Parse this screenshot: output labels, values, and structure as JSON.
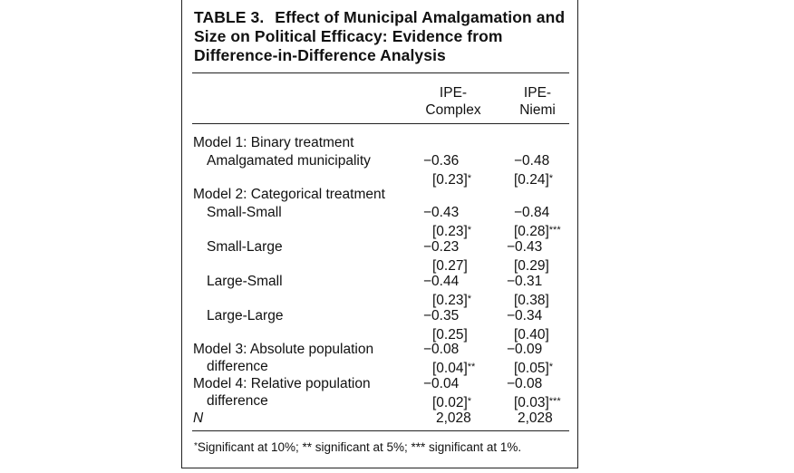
{
  "table": {
    "title_label": "TABLE 3.",
    "title_text": "Effect of Municipal Amalgamation and Size on Political Efficacy: Evidence from Difference-in-Difference Analysis",
    "columns": [
      {
        "line1": "IPE-",
        "line2": "Complex"
      },
      {
        "line1": "IPE-",
        "line2": "Niemi"
      }
    ],
    "model1": {
      "heading": "Model 1: Binary treatment",
      "rows": [
        {
          "label": "Amalgamated municipality",
          "c1": "−0.36",
          "c1_se": "[0.23]",
          "c1_sig": "*",
          "c2": "−0.48",
          "c2_se": "[0.24]",
          "c2_sig": "*"
        }
      ]
    },
    "model2": {
      "heading": "Model 2: Categorical treatment",
      "rows": [
        {
          "label": "Small-Small",
          "c1": "−0.43",
          "c1_se": "[0.23]",
          "c1_sig": "*",
          "c2": "−0.84",
          "c2_se": "[0.28]",
          "c2_sig": "***"
        },
        {
          "label": "Small-Large",
          "c1": "−0.23",
          "c1_se": "[0.27]",
          "c1_sig": "",
          "c2": "−0.43",
          "c2_se": "[0.29]",
          "c2_sig": ""
        },
        {
          "label": "Large-Small",
          "c1": "−0.44",
          "c1_se": "[0.23]",
          "c1_sig": "*",
          "c2": "−0.31",
          "c2_se": "[0.38]",
          "c2_sig": ""
        },
        {
          "label": "Large-Large",
          "c1": "−0.35",
          "c1_se": "[0.25]",
          "c1_sig": "",
          "c2": "−0.34",
          "c2_se": "[0.40]",
          "c2_sig": ""
        }
      ]
    },
    "model3": {
      "line1": "Model 3: Absolute population",
      "line2": "difference",
      "c1": "−0.08",
      "c1_se": "[0.04]",
      "c1_sig": "**",
      "c2": "−0.09",
      "c2_se": "[0.05]",
      "c2_sig": "*"
    },
    "model4": {
      "line1": "Model 4: Relative population",
      "line2": "difference",
      "c1": "−0.04",
      "c1_se": "[0.02]",
      "c1_sig": "*",
      "c2": "−0.08",
      "c2_se": "[0.03]",
      "c2_sig": "***"
    },
    "n_row": {
      "label": "N",
      "c1": "2,028",
      "c2": "2,028"
    },
    "footnote_star": "*",
    "footnote_text": "Significant at 10%; ** significant at 5%; *** significant at 1%."
  }
}
